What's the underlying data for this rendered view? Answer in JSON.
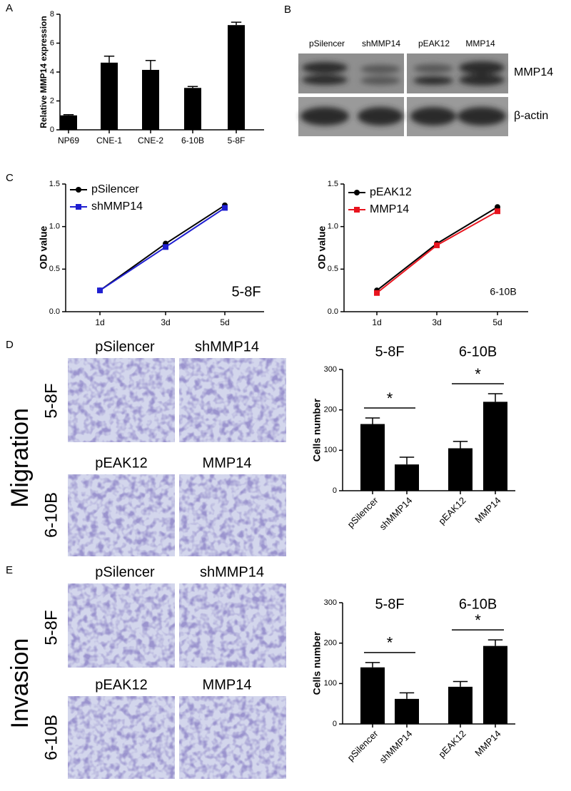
{
  "figure": {
    "panel_labels": [
      "A",
      "B",
      "C",
      "D",
      "E"
    ],
    "blot": {
      "lanes": [
        "pSilencer",
        "shMMP14",
        "pEAK12",
        "MMP14"
      ],
      "rows": [
        "MMP14",
        "β-actin"
      ]
    },
    "migration": {
      "title": "Migration",
      "images": [
        "pSilencer",
        "shMMP14",
        "pEAK12",
        "MMP14"
      ],
      "rows": [
        "5-8F",
        "6-10B"
      ]
    },
    "invasion": {
      "title": "Invasion",
      "images": [
        "pSilencer",
        "shMMP14",
        "pEAK12",
        "MMP14"
      ],
      "rows": [
        "5-8F",
        "6-10B"
      ]
    }
  },
  "chart_data": [
    {
      "type": "bar",
      "ylabel": "Relative MMP14 expression",
      "categories": [
        "NP69",
        "CNE-1",
        "CNE-2",
        "6-10B",
        "5-8F"
      ],
      "values": [
        1.0,
        4.65,
        4.15,
        2.9,
        7.25
      ],
      "errors": [
        0.05,
        0.45,
        0.65,
        0.1,
        0.2
      ],
      "color": "#000000",
      "ylim": [
        0,
        8
      ],
      "yticks": [
        0,
        2,
        4,
        6,
        8
      ]
    },
    {
      "type": "line",
      "ylabel": "OD value",
      "annotation": "5-8F",
      "categories": [
        "1d",
        "3d",
        "5d"
      ],
      "series": [
        {
          "name": "pSilencer",
          "color": "#000000",
          "values": [
            0.25,
            0.8,
            1.25
          ]
        },
        {
          "name": "shMMP14",
          "color": "#1f1fd1",
          "values": [
            0.25,
            0.76,
            1.22
          ]
        }
      ],
      "ylim": [
        0,
        1.5
      ],
      "yticks": [
        {
          "value": 0,
          "label": "0.0"
        },
        0.5,
        {
          "value": 1,
          "label": "1.0"
        },
        1.5
      ]
    },
    {
      "type": "line",
      "ylabel": "OD value",
      "annotation": "6-10B",
      "categories": [
        "1d",
        "3d",
        "5d"
      ],
      "series": [
        {
          "name": "pEAK12",
          "color": "#000000",
          "values": [
            0.25,
            0.8,
            1.23
          ]
        },
        {
          "name": "MMP14",
          "color": "#e8141e",
          "values": [
            0.22,
            0.78,
            1.18
          ]
        }
      ],
      "ylim": [
        0,
        1.5
      ],
      "yticks": [
        {
          "value": 0,
          "label": "0.0"
        },
        0.5,
        {
          "value": 1,
          "label": "1.0"
        },
        1.5
      ]
    },
    {
      "type": "bar",
      "ylabel": "Cells number",
      "groups": [
        "5-8F",
        "6-10B"
      ],
      "significance": [
        "*",
        "*"
      ],
      "categories": [
        "pSilencer",
        "shMMP14",
        "pEAK12",
        "MMP14"
      ],
      "values": [
        165,
        65,
        105,
        220
      ],
      "errors": [
        15,
        18,
        17,
        20
      ],
      "color": "#000000",
      "ylim": [
        0,
        300
      ],
      "yticks": [
        0,
        100,
        200,
        300
      ]
    },
    {
      "type": "bar",
      "ylabel": "Cells number",
      "groups": [
        "5-8F",
        "6-10B"
      ],
      "significance": [
        "*",
        "*"
      ],
      "categories": [
        "pSilencer",
        "shMMP14",
        "pEAK12",
        "MMP14"
      ],
      "values": [
        140,
        62,
        92,
        193
      ],
      "errors": [
        12,
        15,
        13,
        15
      ],
      "color": "#000000",
      "ylim": [
        0,
        300
      ],
      "yticks": [
        0,
        100,
        200,
        300
      ]
    }
  ]
}
